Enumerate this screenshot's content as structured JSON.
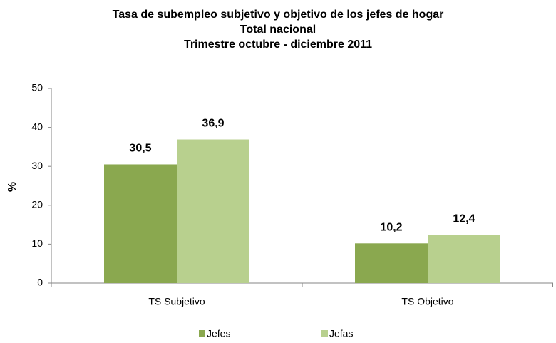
{
  "chart_data": {
    "type": "bar",
    "title": [
      "Tasa de subempleo subjetivo y objetivo de los jefes de hogar",
      "Total nacional",
      "Trimestre octubre - diciembre 2011"
    ],
    "y_label": "%",
    "categories": [
      "TS Subjetivo",
      "TS Objetivo"
    ],
    "series": [
      {
        "name": "Jefes",
        "color": "#8aa84f",
        "values": [
          30.5,
          10.2
        ],
        "value_labels": [
          "30,5",
          "10,2"
        ]
      },
      {
        "name": "Jefas",
        "color": "#b8d08e",
        "values": [
          36.9,
          12.4
        ],
        "value_labels": [
          "36,9",
          "12,4"
        ]
      }
    ],
    "ylim": [
      0,
      50
    ],
    "yticks": [
      0,
      10,
      20,
      30,
      40,
      50
    ],
    "grid": false,
    "legend": "bottom"
  }
}
